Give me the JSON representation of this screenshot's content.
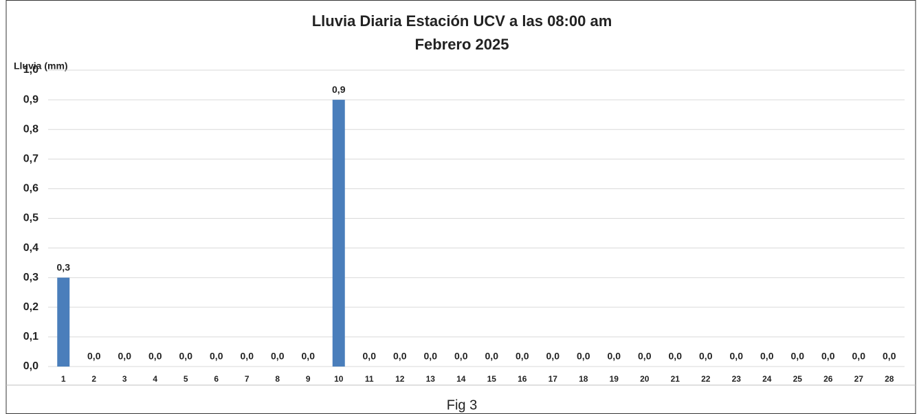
{
  "chart_data": {
    "type": "bar",
    "title": "Lluvia Diaria Estación UCV a las 08:00 am",
    "subtitle": "Febrero  2025",
    "y_label": "Lluvia (mm)",
    "caption": "Fig 3",
    "categories": [
      "1",
      "2",
      "3",
      "4",
      "5",
      "6",
      "7",
      "8",
      "9",
      "10",
      "11",
      "12",
      "13",
      "14",
      "15",
      "16",
      "17",
      "18",
      "19",
      "20",
      "21",
      "22",
      "23",
      "24",
      "25",
      "26",
      "27",
      "28"
    ],
    "values": [
      0.3,
      0,
      0,
      0,
      0,
      0,
      0,
      0,
      0,
      0.9,
      0,
      0,
      0,
      0,
      0,
      0,
      0,
      0,
      0,
      0,
      0,
      0,
      0,
      0,
      0,
      0,
      0,
      0
    ],
    "value_labels": [
      "0,3",
      "0,0",
      "0,0",
      "0,0",
      "0,0",
      "0,0",
      "0,0",
      "0,0",
      "0,0",
      "0,9",
      "0,0",
      "0,0",
      "0,0",
      "0,0",
      "0,0",
      "0,0",
      "0,0",
      "0,0",
      "0,0",
      "0,0",
      "0,0",
      "0,0",
      "0,0",
      "0,0",
      "0,0",
      "0,0",
      "0,0",
      "0,0"
    ],
    "color": "#4a7ebb",
    "ylim": [
      0,
      1
    ],
    "yticks": [
      {
        "value": 0,
        "label": "0,0"
      },
      {
        "value": 0.1,
        "label": "0,1"
      },
      {
        "value": 0.2,
        "label": "0,2"
      },
      {
        "value": 0.3,
        "label": "0,3"
      },
      {
        "value": 0.4,
        "label": "0,4"
      },
      {
        "value": 0.5,
        "label": "0,5"
      },
      {
        "value": 0.6,
        "label": "0,6"
      },
      {
        "value": 0.7,
        "label": "0,7"
      },
      {
        "value": 0.8,
        "label": "0,8"
      },
      {
        "value": 0.9,
        "label": "0,9"
      },
      {
        "value": 1,
        "label": "1,0"
      }
    ],
    "grid": true
  }
}
